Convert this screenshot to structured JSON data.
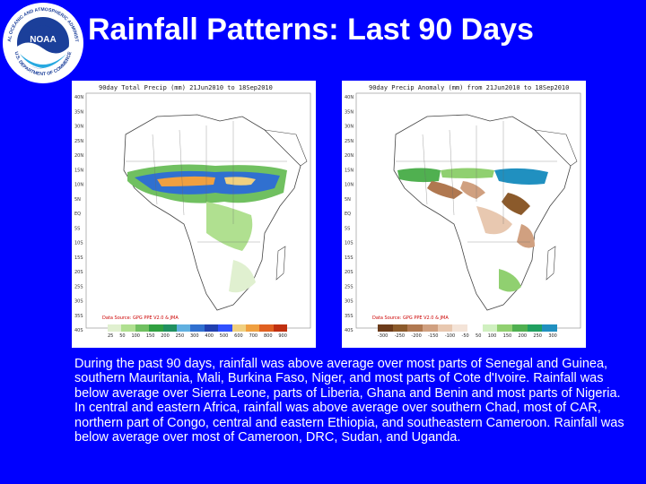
{
  "logo": {
    "name": "NOAA",
    "ring_top": "NATIONAL OCEANIC AND ATMOSPHERIC ADMINISTRATION",
    "ring_bottom": "U.S. DEPARTMENT OF COMMERCE"
  },
  "title": "Rainfall Patterns: Last 90 Days",
  "maps": {
    "left": {
      "caption": "90day Total Precip (mm) 21Jun2010 to 18Sep2010",
      "credit": "Data Source: GPG PPE V2.0 & JMA",
      "legend_ticks": [
        "25",
        "50",
        "100",
        "150",
        "200",
        "250",
        "300",
        "400",
        "500",
        "600",
        "700",
        "800",
        "900"
      ]
    },
    "right": {
      "caption": "90day Precip Anomaly (mm) from 21Jun2010 to 18Sep2010",
      "credit": "Data Source: GPG PPE V2.0 & JMA",
      "legend_ticks": [
        "-300",
        "-250",
        "-200",
        "-150",
        "-100",
        "-50",
        "50",
        "100",
        "150",
        "200",
        "250",
        "300"
      ]
    }
  },
  "lat_labels": [
    "40N",
    "35N",
    "30N",
    "25N",
    "20N",
    "15N",
    "10N",
    "5N",
    "EQ",
    "5S",
    "10S",
    "15S",
    "20S",
    "25S",
    "30S",
    "35S",
    "40S"
  ],
  "body_text": "During the past 90 days, rainfall was above average over most parts of Senegal and Guinea, southern Mauritania, Mali, Burkina Faso, Niger, and most parts of Cote d'Ivoire. Rainfall was below average over Sierra Leone, parts of Liberia, Ghana and Benin and most parts of Nigeria. In central and eastern Africa, rainfall was above average over southern Chad, most of CAR, northern part of Congo, central and eastern Ethiopia, and southeastern Cameroon. Rainfall was below average over most of Cameroon, DRC, Sudan, and Uganda.",
  "colors": {
    "background": "#0000ff",
    "title": "#ffffff",
    "precip_scale": [
      "#e0f0d0",
      "#b0e090",
      "#70c060",
      "#30a040",
      "#209060",
      "#60b0e0",
      "#3070d0",
      "#2040b0",
      "#3050ff",
      "#f0d080",
      "#f0a040",
      "#e06020",
      "#c03010"
    ],
    "anomaly_scale": [
      "#6b3b1a",
      "#8b5a2b",
      "#b07850",
      "#d0a080",
      "#e8c8b0",
      "#f4e4d8",
      "#ffffff",
      "#d0f0c0",
      "#90d070",
      "#50b050",
      "#20a060",
      "#2090c0"
    ]
  }
}
